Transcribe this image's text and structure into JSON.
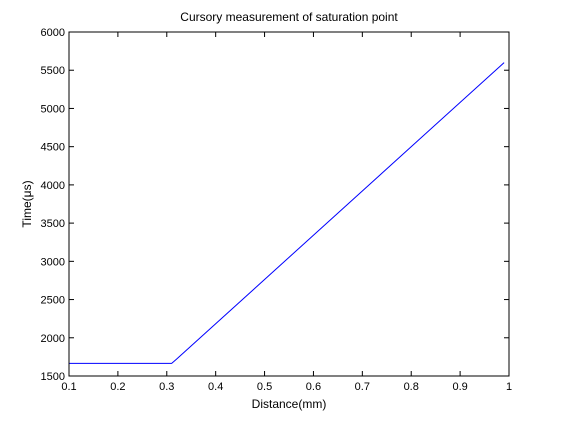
{
  "chart_data": {
    "type": "line",
    "title": "Cursory measurement of saturation point",
    "xlabel": "Distance(mm)",
    "ylabel": "Time(μs)",
    "xlim": [
      0.1,
      1
    ],
    "ylim": [
      1500,
      6000
    ],
    "xticks": [
      0.1,
      0.2,
      0.3,
      0.4,
      0.5,
      0.6,
      0.7,
      0.8,
      0.9,
      1
    ],
    "xtick_labels": [
      "0.1",
      "0.2",
      "0.3",
      "0.4",
      "0.5",
      "0.6",
      "0.7",
      "0.8",
      "0.9",
      "1"
    ],
    "yticks": [
      1500,
      2000,
      2500,
      3000,
      3500,
      4000,
      4500,
      5000,
      5500,
      6000
    ],
    "ytick_labels": [
      "1500",
      "2000",
      "2500",
      "3000",
      "3500",
      "4000",
      "4500",
      "5000",
      "5500",
      "6000"
    ],
    "grid": false,
    "legend": "none",
    "series": [
      {
        "color": "#0000ff",
        "x": [
          0.1,
          0.31,
          0.32,
          0.99
        ],
        "y": [
          1665,
          1665,
          1720,
          5600
        ]
      }
    ]
  }
}
